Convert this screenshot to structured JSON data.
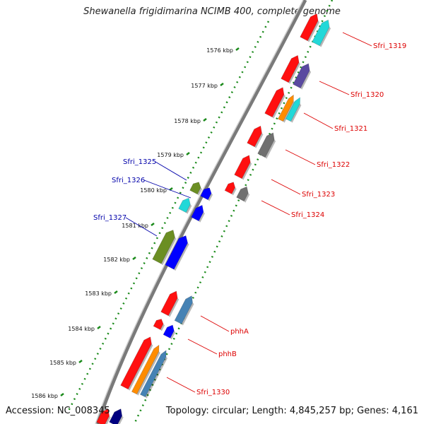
{
  "title": "Shewanella frigidimarina NCIMB 400, complete genome",
  "footer": {
    "accession": "Accession: NC_008345",
    "summary": "Topology: circular; Length: 4,845,257 bp; Genes: 4,161"
  },
  "colors": {
    "backbone": "#8a8a8a",
    "tick": "#1a8a1a",
    "label_forward": "#0000aa",
    "label_reverse": "#dd0000"
  },
  "ticks": [
    "1576 kbp",
    "1577 kbp",
    "1578 kbp",
    "1579 kbp",
    "1580 kbp",
    "1581 kbp",
    "1582 kbp",
    "1583 kbp",
    "1584 kbp",
    "1585 kbp",
    "1586 kbp"
  ],
  "labels": {
    "forward": [
      "Sfri_1325",
      "Sfri_1326",
      "Sfri_1327"
    ],
    "reverse": [
      "Sfri_1319",
      "Sfri_1320",
      "Sfri_1321",
      "Sfri_1322",
      "Sfri_1323",
      "Sfri_1324",
      "phhA",
      "phhB",
      "Sfri_1330"
    ]
  }
}
